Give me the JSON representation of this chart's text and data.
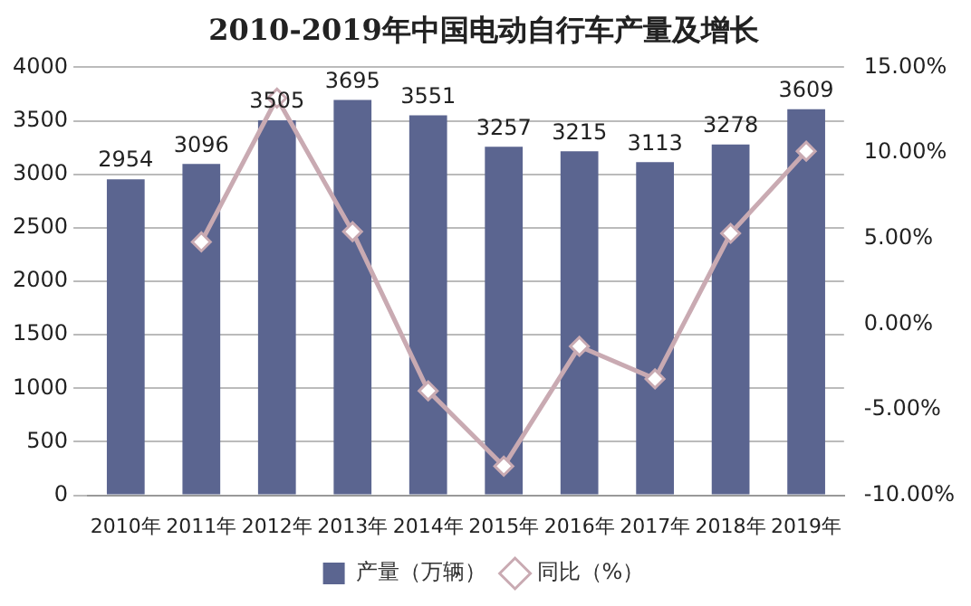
{
  "chart_data": {
    "type": "bar",
    "title": "2010-2019年中国电动自行车产量及增长",
    "categories": [
      "2010年",
      "2011年",
      "2012年",
      "2013年",
      "2014年",
      "2015年",
      "2016年",
      "2017年",
      "2018年",
      "2019年"
    ],
    "series": [
      {
        "name": "产量（万辆）",
        "color": "#5b6590",
        "values": [
          2954,
          3096,
          3505,
          3695,
          3551,
          3257,
          3215,
          3113,
          3278,
          3609
        ],
        "data_labels": true
      },
      {
        "name": "同比（%）",
        "type": "line",
        "axis": "y2",
        "color": "#c9aab2",
        "marker": "diamond",
        "values": [
          null,
          4.8,
          13.2,
          5.4,
          -3.9,
          -8.3,
          -1.3,
          -3.2,
          5.3,
          10.1
        ]
      }
    ],
    "ylim": [
      0,
      4000
    ],
    "yticks": [
      0,
      500,
      1000,
      1500,
      2000,
      2500,
      3000,
      3500,
      4000
    ],
    "y2lim": [
      -10,
      15
    ],
    "y2ticks": [
      {
        "value": -10,
        "label": "-10.00%"
      },
      {
        "value": -5,
        "label": "-5.00%"
      },
      {
        "value": 0,
        "label": "0.00%"
      },
      {
        "value": 5,
        "label": "5.00%"
      },
      {
        "value": 10,
        "label": "10.00%"
      },
      {
        "value": 15,
        "label": "15.00%"
      }
    ],
    "grid": "y",
    "legend": "bottom"
  }
}
